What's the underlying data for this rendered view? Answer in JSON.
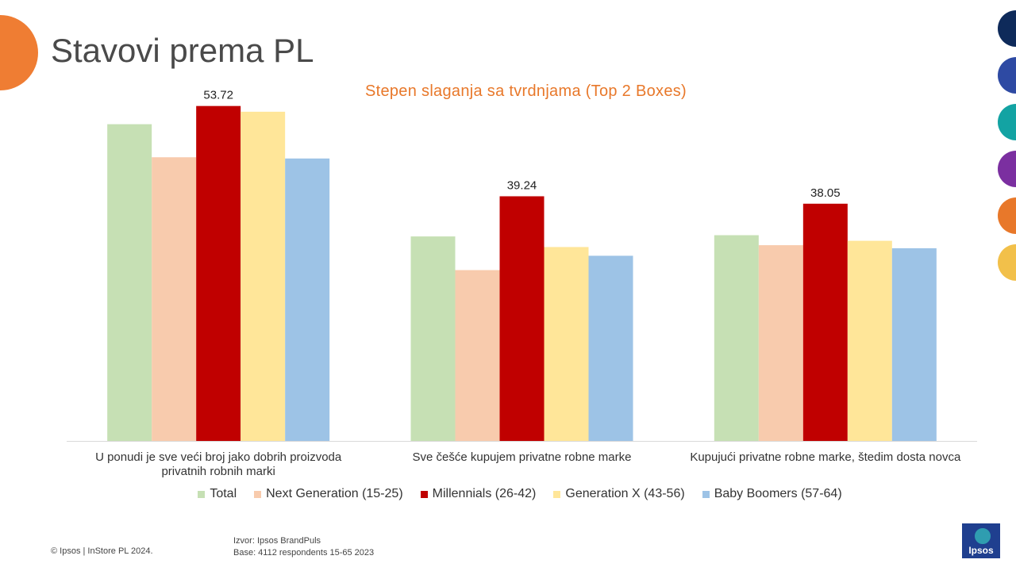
{
  "page": {
    "title": "Stavovi prema PL",
    "copyright": "© Ipsos | InStore PL 2024.",
    "source_line1": "Izvor: Ipsos BrandPuls",
    "source_line2": "Base: 4112 respondents 15-65 2023",
    "logo_text": "Ipsos"
  },
  "decor": {
    "side_circle_colors": [
      "#0e2a5a",
      "#2e4aa3",
      "#13a3a3",
      "#7b2fa0",
      "#e8782a",
      "#f2c04a"
    ],
    "corner_circle_color": "#ef7d33"
  },
  "chart_data": {
    "type": "bar",
    "title": "Stepen slaganja sa tvrdnjama (Top 2 Boxes)",
    "categories": [
      [
        "U ponudi je sve veći broj jako dobrih proizvoda",
        "privatnih robnih marki"
      ],
      [
        "Sve češće kupujem privatne robne marke"
      ],
      [
        "Kupujući privatne robne marke, štedim dosta novca"
      ]
    ],
    "series": [
      {
        "name": "Total",
        "color": "#c6e0b4",
        "values": [
          50.8,
          32.8,
          33.0
        ]
      },
      {
        "name": "Next Generation (15-25)",
        "color": "#f8cbad",
        "values": [
          45.5,
          27.4,
          31.4
        ]
      },
      {
        "name": "Millennials (26-42)",
        "color": "#c00000",
        "values": [
          53.72,
          39.24,
          38.05
        ],
        "labels": [
          "53.72",
          "39.24",
          "38.05"
        ]
      },
      {
        "name": "Generation X (43-56)",
        "color": "#ffe699",
        "values": [
          52.8,
          31.1,
          32.1
        ]
      },
      {
        "name": "Baby Boomers (57-64)",
        "color": "#9dc3e6",
        "values": [
          45.3,
          29.7,
          30.9
        ]
      }
    ],
    "ylim": [
      0,
      58
    ],
    "grid": false,
    "legend": "bottom"
  }
}
